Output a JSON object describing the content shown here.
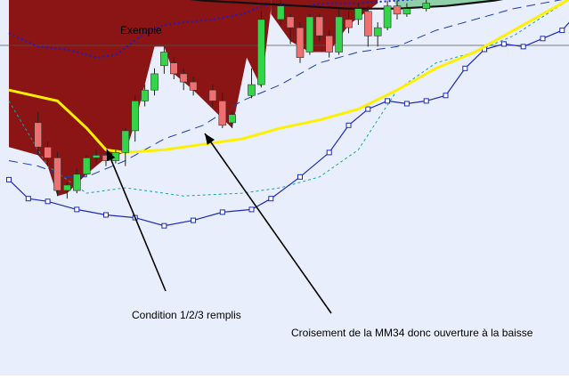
{
  "chart_data": {
    "type": "candlestick",
    "title": "Exemple",
    "grid": false,
    "legend": "none",
    "candles": [
      {
        "x": 3,
        "open": 22.0,
        "close": 17.5,
        "high": 24.0,
        "low": 16.0
      },
      {
        "x": 4,
        "open": 17.5,
        "close": 15.5,
        "high": 18.5,
        "low": 14.0
      },
      {
        "x": 5,
        "open": 15.5,
        "close": 9.5,
        "high": 16.5,
        "low": 8.5
      },
      {
        "x": 6,
        "open": 9.5,
        "close": 10.5,
        "high": 11.0,
        "low": 8.0
      },
      {
        "x": 7,
        "open": 9.5,
        "close": 12.5,
        "high": 13.5,
        "low": 9.0
      },
      {
        "x": 8,
        "open": 12.5,
        "close": 15.5,
        "high": 16.0,
        "low": 12.0
      },
      {
        "x": 9,
        "open": 15.5,
        "close": 16.0,
        "high": 17.0,
        "low": 14.5
      },
      {
        "x": 10,
        "open": 16.0,
        "close": 15.0,
        "high": 16.5,
        "low": 14.0
      },
      {
        "x": 11,
        "open": 15.0,
        "close": 16.5,
        "high": 17.0,
        "low": 14.5
      },
      {
        "x": 12,
        "open": 16.5,
        "close": 20.5,
        "high": 21.0,
        "low": 14.0
      },
      {
        "x": 13,
        "open": 20.5,
        "close": 26.0,
        "high": 27.0,
        "low": 18.5
      },
      {
        "x": 14,
        "open": 26.0,
        "close": 28.0,
        "high": 29.0,
        "low": 25.0
      },
      {
        "x": 15,
        "open": 28.0,
        "close": 31.0,
        "high": 32.0,
        "low": 27.0
      },
      {
        "x": 16,
        "open": 32.5,
        "close": 35.0,
        "high": 36.0,
        "low": 31.0
      },
      {
        "x": 17,
        "open": 33.0,
        "close": 31.0,
        "high": 34.0,
        "low": 30.0
      },
      {
        "x": 18,
        "open": 31.0,
        "close": 29.5,
        "high": 32.0,
        "low": 28.0
      },
      {
        "x": 19,
        "open": 29.5,
        "close": 28.0,
        "high": 30.5,
        "low": 27.0
      },
      {
        "x": 21,
        "open": 28.0,
        "close": 26.0,
        "high": 29.0,
        "low": 25.0
      },
      {
        "x": 22,
        "open": 26.0,
        "close": 21.5,
        "high": 27.5,
        "low": 21.0
      },
      {
        "x": 23,
        "open": 22.0,
        "close": 23.5,
        "high": 24.0,
        "low": 21.0
      },
      {
        "x": 25,
        "open": 27.0,
        "close": 29.0,
        "high": 32.0,
        "low": 26.5
      },
      {
        "x": 26,
        "open": 29.0,
        "close": 41.0,
        "high": 42.5,
        "low": 28.5
      },
      {
        "x": 28,
        "open": 41.0,
        "close": 43.5,
        "high": 44.5,
        "low": 40.0
      },
      {
        "x": 29,
        "open": 41.5,
        "close": 39.5,
        "high": 42.0,
        "low": 36.5
      },
      {
        "x": 30,
        "open": 39.5,
        "close": 34.0,
        "high": 40.5,
        "low": 33.0
      },
      {
        "x": 31,
        "open": 35.0,
        "close": 41.5,
        "high": 42.0,
        "low": 34.5
      },
      {
        "x": 32,
        "open": 41.5,
        "close": 38.0,
        "high": 42.0,
        "low": 37.0
      },
      {
        "x": 33,
        "open": 38.0,
        "close": 35.0,
        "high": 39.0,
        "low": 34.0
      },
      {
        "x": 34,
        "open": 35.0,
        "close": 41.5,
        "high": 43.0,
        "low": 34.5
      },
      {
        "x": 35,
        "open": 41.0,
        "close": 39.5,
        "high": 42.5,
        "low": 38.5
      },
      {
        "x": 36,
        "open": 41.0,
        "close": 43.0,
        "high": 44.0,
        "low": 40.0
      },
      {
        "x": 37,
        "open": 42.5,
        "close": 38.0,
        "high": 43.5,
        "low": 36.0
      },
      {
        "x": 38,
        "open": 38.0,
        "close": 39.5,
        "high": 40.5,
        "low": 36.0
      },
      {
        "x": 39,
        "open": 39.5,
        "close": 43.5,
        "high": 44.5,
        "low": 39.0
      },
      {
        "x": 40,
        "open": 43.5,
        "close": 42.0,
        "high": 44.5,
        "low": 41.0
      },
      {
        "x": 41,
        "open": 42.0,
        "close": 43.0,
        "high": 44.0,
        "low": 41.5
      },
      {
        "x": 43,
        "open": 43.0,
        "close": 44.0,
        "high": 45.0,
        "low": 42.5
      }
    ],
    "series": [
      {
        "values": [
          [
            0,
            28.0
          ],
          [
            5,
            26.0
          ],
          [
            8,
            21.0
          ],
          [
            10,
            17.0
          ],
          [
            12,
            16.5
          ],
          [
            16,
            17.0
          ],
          [
            20,
            18.0
          ],
          [
            24,
            19.0
          ],
          [
            28,
            21.0
          ],
          [
            32,
            22.5
          ],
          [
            36,
            24.5
          ],
          [
            40,
            28.0
          ],
          [
            44,
            32.0
          ],
          [
            48,
            35.0
          ],
          [
            52,
            39.0
          ],
          [
            55,
            42.0
          ],
          [
            58,
            45.0
          ]
        ]
      },
      {
        "values": [
          [
            0,
            15.0
          ],
          [
            3,
            14.0
          ],
          [
            6,
            12.0
          ],
          [
            8,
            12.0
          ],
          [
            12,
            15.0
          ],
          [
            16,
            19.0
          ],
          [
            20,
            21.5
          ],
          [
            24,
            26.0
          ],
          [
            28,
            29.0
          ],
          [
            32,
            33.0
          ],
          [
            36,
            35.0
          ],
          [
            40,
            36.0
          ],
          [
            44,
            39.0
          ],
          [
            48,
            41.0
          ],
          [
            52,
            43.0
          ],
          [
            58,
            45.0
          ]
        ]
      },
      {
        "values": [
          [
            0,
            26.0
          ],
          [
            4,
            14.0
          ],
          [
            8,
            9.0
          ],
          [
            12,
            10.0
          ],
          [
            18,
            8.5
          ],
          [
            24,
            9.0
          ],
          [
            28,
            10.0
          ],
          [
            32,
            12.0
          ],
          [
            36,
            17.0
          ],
          [
            40,
            28.0
          ],
          [
            44,
            33.0
          ],
          [
            48,
            35.0
          ],
          [
            52,
            38.0
          ],
          [
            58,
            45.0
          ]
        ]
      },
      {
        "values": [
          [
            0,
            11.5
          ],
          [
            2,
            8.0
          ],
          [
            4,
            7.5
          ],
          [
            7,
            6.0
          ],
          [
            10,
            5.0
          ],
          [
            13,
            4.5
          ],
          [
            16,
            3.0
          ],
          [
            19,
            4.0
          ],
          [
            22,
            5.5
          ],
          [
            25,
            6.0
          ],
          [
            27,
            8.0
          ],
          [
            30,
            12.0
          ],
          [
            33,
            16.5
          ],
          [
            35,
            21.5
          ],
          [
            37,
            24.5
          ],
          [
            39,
            26.0
          ],
          [
            41,
            25.5
          ],
          [
            43,
            26.0
          ],
          [
            45,
            27.0
          ],
          [
            47,
            32.0
          ],
          [
            49,
            35.5
          ],
          [
            51,
            36.5
          ],
          [
            53,
            36.0
          ],
          [
            55,
            37.5
          ],
          [
            57,
            39.0
          ],
          [
            58,
            41.0
          ]
        ]
      },
      {
        "values": [
          [
            0,
            38.5
          ],
          [
            3,
            36.0
          ],
          [
            6,
            35.5
          ],
          [
            9,
            34.0
          ],
          [
            11,
            34.5
          ],
          [
            14,
            38.5
          ],
          [
            16,
            40.0
          ],
          [
            18,
            40.5
          ],
          [
            21,
            41.0
          ],
          [
            24,
            42.0
          ],
          [
            27,
            44.0
          ],
          [
            30,
            43.5
          ],
          [
            33,
            44.0
          ],
          [
            36,
            44.0
          ],
          [
            40,
            44.5
          ],
          [
            44,
            45.0
          ]
        ]
      },
      {
        "values": [
          [
            24,
            44.0
          ],
          [
            28,
            43.0
          ],
          [
            32,
            42.0
          ],
          [
            36,
            42.5
          ],
          [
            40,
            43.5
          ],
          [
            44,
            44.0
          ],
          [
            48,
            45.0
          ],
          [
            52,
            46.0
          ],
          [
            56,
            47.0
          ],
          [
            58,
            48.5
          ]
        ]
      },
      {
        "values": [
          [
            0,
            50.0
          ],
          [
            5,
            48.0
          ],
          [
            10,
            46.5
          ],
          [
            15,
            45.5
          ],
          [
            20,
            44.5
          ],
          [
            25,
            44.0
          ],
          [
            30,
            43.5
          ],
          [
            35,
            43.0
          ],
          [
            40,
            43.0
          ],
          [
            45,
            43.5
          ],
          [
            50,
            44.5
          ],
          [
            55,
            46.0
          ],
          [
            58,
            47.0
          ]
        ]
      }
    ],
    "annotations": [
      {
        "text": "Condition 1/2/3 remplis",
        "x": 11,
        "y": 15.0
      },
      {
        "text": "Croisement de la MM34 donc ouverture à la baisse",
        "x": 21,
        "y": 17.0
      }
    ],
    "colors": {
      "background": "#E8EEFB",
      "cloud_red": "#8B1414",
      "cloud_green": "#8FD0A8",
      "cloud_blue": "#BCD2F2",
      "candle_up": "#33D448",
      "candle_down": "#EE7070",
      "mm34": "#FFF000",
      "blue_dashed": "#1C3CB4",
      "blue_dotted": "#1C1CC8",
      "teal": "#1AA0A8",
      "black_line": "#111111",
      "blue_markers": "#1D2AB8"
    }
  }
}
